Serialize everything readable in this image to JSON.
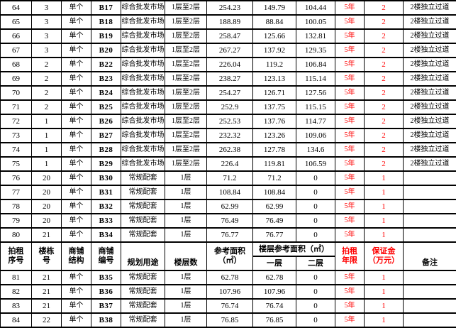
{
  "colors": {
    "highlight_red": "#ff0000",
    "border": "#000000",
    "background": "#ffffff"
  },
  "table": {
    "header": {
      "seq": {
        "l1": "拍租",
        "l2": "序号"
      },
      "building": {
        "l1": "楼栋",
        "l2": "号"
      },
      "structure": {
        "l1": "商铺",
        "l2": "结构"
      },
      "code": {
        "l1": "商铺",
        "l2": "编号"
      },
      "use": "规划用途",
      "floors": "楼层数",
      "area": {
        "l1": "参考面积",
        "l2": "（㎡）"
      },
      "floor_area_group": "楼层参考面积（㎡）",
      "floor1": "一层",
      "floor2": "二层",
      "years": {
        "l1": "拍租",
        "l2": "年限"
      },
      "deposit": {
        "l1": "保证金",
        "l2": "（万元）"
      },
      "remark": "备注"
    },
    "rows_above_header": [
      [
        "64",
        "3",
        "单个",
        "B17",
        "综合批发市场",
        "1层至2层",
        "254.23",
        "149.79",
        "104.44",
        "5年",
        "2",
        "2楼独立过道"
      ],
      [
        "65",
        "3",
        "单个",
        "B18",
        "综合批发市场",
        "1层至2层",
        "188.89",
        "88.84",
        "100.05",
        "5年",
        "2",
        "2楼独立过道"
      ],
      [
        "66",
        "3",
        "单个",
        "B19",
        "综合批发市场",
        "1层至2层",
        "258.47",
        "125.66",
        "132.81",
        "5年",
        "2",
        "2楼独立过道"
      ],
      [
        "67",
        "3",
        "单个",
        "B20",
        "综合批发市场",
        "1层至2层",
        "267.27",
        "137.92",
        "129.35",
        "5年",
        "2",
        "2楼独立过道"
      ],
      [
        "68",
        "2",
        "单个",
        "B22",
        "综合批发市场",
        "1层至2层",
        "226.04",
        "119.2",
        "106.84",
        "5年",
        "2",
        "2楼独立过道"
      ],
      [
        "69",
        "2",
        "单个",
        "B23",
        "综合批发市场",
        "1层至2层",
        "238.27",
        "123.13",
        "115.14",
        "5年",
        "2",
        "2楼独立过道"
      ],
      [
        "70",
        "2",
        "单个",
        "B24",
        "综合批发市场",
        "1层至2层",
        "254.27",
        "126.71",
        "127.56",
        "5年",
        "2",
        "2楼独立过道"
      ],
      [
        "71",
        "2",
        "单个",
        "B25",
        "综合批发市场",
        "1层至2层",
        "252.9",
        "137.75",
        "115.15",
        "5年",
        "2",
        "2楼独立过道"
      ],
      [
        "72",
        "1",
        "单个",
        "B26",
        "综合批发市场",
        "1层至2层",
        "252.53",
        "137.76",
        "114.77",
        "5年",
        "2",
        "2楼独立过道"
      ],
      [
        "73",
        "1",
        "单个",
        "B27",
        "综合批发市场",
        "1层至2层",
        "232.32",
        "123.26",
        "109.06",
        "5年",
        "2",
        "2楼独立过道"
      ],
      [
        "74",
        "1",
        "单个",
        "B28",
        "综合批发市场",
        "1层至2层",
        "262.38",
        "127.78",
        "134.6",
        "5年",
        "2",
        "2楼独立过道"
      ],
      [
        "75",
        "1",
        "单个",
        "B29",
        "综合批发市场",
        "1层至2层",
        "226.4",
        "119.81",
        "106.59",
        "5年",
        "2",
        "2楼独立过道"
      ],
      [
        "76",
        "20",
        "单个",
        "B30",
        "常规配套",
        "1层",
        "71.2",
        "71.2",
        "0",
        "5年",
        "1",
        ""
      ],
      [
        "77",
        "20",
        "单个",
        "B31",
        "常规配套",
        "1层",
        "108.84",
        "108.84",
        "0",
        "5年",
        "1",
        ""
      ],
      [
        "78",
        "20",
        "单个",
        "B32",
        "常规配套",
        "1层",
        "62.99",
        "62.99",
        "0",
        "5年",
        "1",
        ""
      ],
      [
        "79",
        "20",
        "单个",
        "B33",
        "常规配套",
        "1层",
        "76.49",
        "76.49",
        "0",
        "5年",
        "1",
        ""
      ],
      [
        "80",
        "21",
        "单个",
        "B34",
        "常规配套",
        "1层",
        "76.77",
        "76.77",
        "0",
        "5年",
        "1",
        ""
      ]
    ],
    "rows_below_header": [
      [
        "81",
        "21",
        "单个",
        "B35",
        "常规配套",
        "1层",
        "62.78",
        "62.78",
        "0",
        "5年",
        "1",
        ""
      ],
      [
        "82",
        "21",
        "单个",
        "B36",
        "常规配套",
        "1层",
        "107.96",
        "107.96",
        "0",
        "5年",
        "1",
        ""
      ],
      [
        "83",
        "21",
        "单个",
        "B37",
        "常规配套",
        "1层",
        "76.74",
        "76.74",
        "0",
        "5年",
        "1",
        ""
      ],
      [
        "84",
        "22",
        "单个",
        "B38",
        "常规配套",
        "1层",
        "76.85",
        "76.85",
        "0",
        "5年",
        "1",
        ""
      ]
    ]
  }
}
